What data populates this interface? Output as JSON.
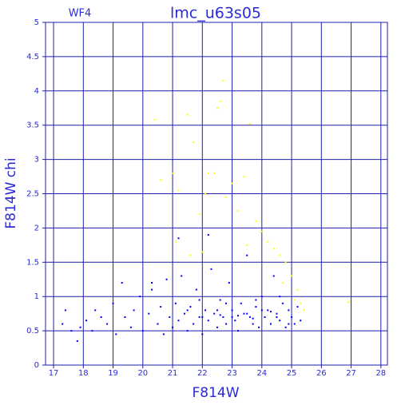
{
  "chart_data": {
    "type": "scatter",
    "title": "lmc_u63s05",
    "label": "WF4",
    "x_label": "F814W",
    "y_label": "F814W chi",
    "xlim": [
      16.73,
      28.22
    ],
    "ylim": [
      0,
      5
    ],
    "xticks": [
      17,
      18,
      19,
      20,
      21,
      22,
      23,
      24,
      25,
      26,
      27,
      28
    ],
    "yticks": [
      0,
      0.5,
      1,
      1.5,
      2,
      2.5,
      3,
      3.5,
      4,
      4.5,
      5
    ],
    "grid": true,
    "series": [
      {
        "color": "#0000ff",
        "x": [
          17.3,
          17.4,
          17.6,
          17.8,
          17.9,
          18.1,
          18.3,
          18.4,
          18.6,
          18.8,
          19.0,
          19.1,
          19.3,
          19.4,
          19.6,
          19.7,
          19.9,
          20.0,
          20.2,
          20.3,
          20.5,
          20.6,
          20.7,
          20.8,
          20.9,
          21.0,
          21.1,
          21.2,
          21.3,
          21.4,
          21.5,
          21.6,
          21.7,
          21.8,
          21.9,
          22.0,
          22.1,
          22.2,
          22.3,
          22.4,
          22.5,
          22.6,
          22.7,
          22.8,
          22.9,
          23.0,
          23.1,
          23.2,
          23.3,
          23.4,
          23.5,
          23.6,
          23.7,
          23.8,
          23.9,
          24.0,
          24.1,
          24.2,
          24.3,
          24.4,
          24.5,
          24.6,
          24.7,
          24.8,
          24.9,
          25.0,
          25.1,
          25.2,
          25.3,
          21.5,
          22.0,
          22.5,
          23.0,
          23.5,
          24.0,
          24.5,
          22.2,
          21.2,
          20.3,
          23.8,
          24.6,
          22.8,
          21.9,
          23.2,
          24.3,
          23.7,
          22.6,
          24.9
        ],
        "values": [
          0.6,
          0.8,
          0.5,
          0.35,
          0.55,
          0.65,
          0.5,
          0.8,
          0.7,
          0.6,
          0.9,
          0.45,
          1.2,
          0.7,
          0.55,
          0.8,
          1.0,
          0.5,
          0.75,
          1.1,
          0.6,
          0.85,
          0.45,
          1.25,
          0.7,
          0.55,
          0.9,
          0.65,
          1.3,
          0.75,
          0.5,
          0.85,
          0.6,
          1.1,
          0.7,
          0.45,
          0.8,
          0.65,
          1.4,
          0.75,
          0.55,
          0.95,
          0.7,
          0.6,
          1.2,
          0.8,
          0.65,
          0.5,
          0.9,
          0.75,
          1.6,
          0.7,
          0.6,
          0.85,
          0.55,
          1.0,
          0.7,
          0.8,
          0.6,
          1.3,
          0.75,
          0.65,
          0.9,
          0.55,
          0.8,
          0.7,
          0.6,
          0.85,
          0.65,
          0.8,
          0.7,
          0.8,
          0.7,
          0.75,
          0.8,
          0.7,
          1.9,
          1.85,
          1.2,
          0.95,
          1.0,
          0.9,
          0.95,
          0.72,
          0.78,
          0.68,
          0.73,
          0.6
        ]
      },
      {
        "color": "#ffff00",
        "x": [
          20.4,
          20.6,
          21.0,
          21.2,
          21.5,
          21.7,
          21.9,
          22.1,
          22.2,
          22.4,
          22.5,
          22.6,
          22.7,
          22.8,
          23.0,
          23.2,
          23.4,
          23.6,
          23.8,
          24.0,
          24.2,
          24.4,
          24.6,
          24.8,
          25.0,
          25.2,
          25.3,
          25.4,
          26.9,
          21.1,
          22.0,
          21.6,
          23.5,
          24.7,
          25.1
        ],
        "values": [
          3.58,
          2.7,
          2.8,
          2.55,
          3.65,
          3.25,
          2.2,
          2.5,
          2.8,
          2.8,
          3.75,
          3.85,
          4.15,
          2.45,
          2.65,
          2.25,
          2.75,
          3.52,
          2.1,
          1.95,
          1.8,
          1.7,
          1.6,
          1.5,
          1.3,
          1.1,
          0.9,
          0.8,
          0.92,
          1.8,
          1.65,
          1.6,
          1.75,
          1.2,
          0.95
        ]
      }
    ]
  }
}
